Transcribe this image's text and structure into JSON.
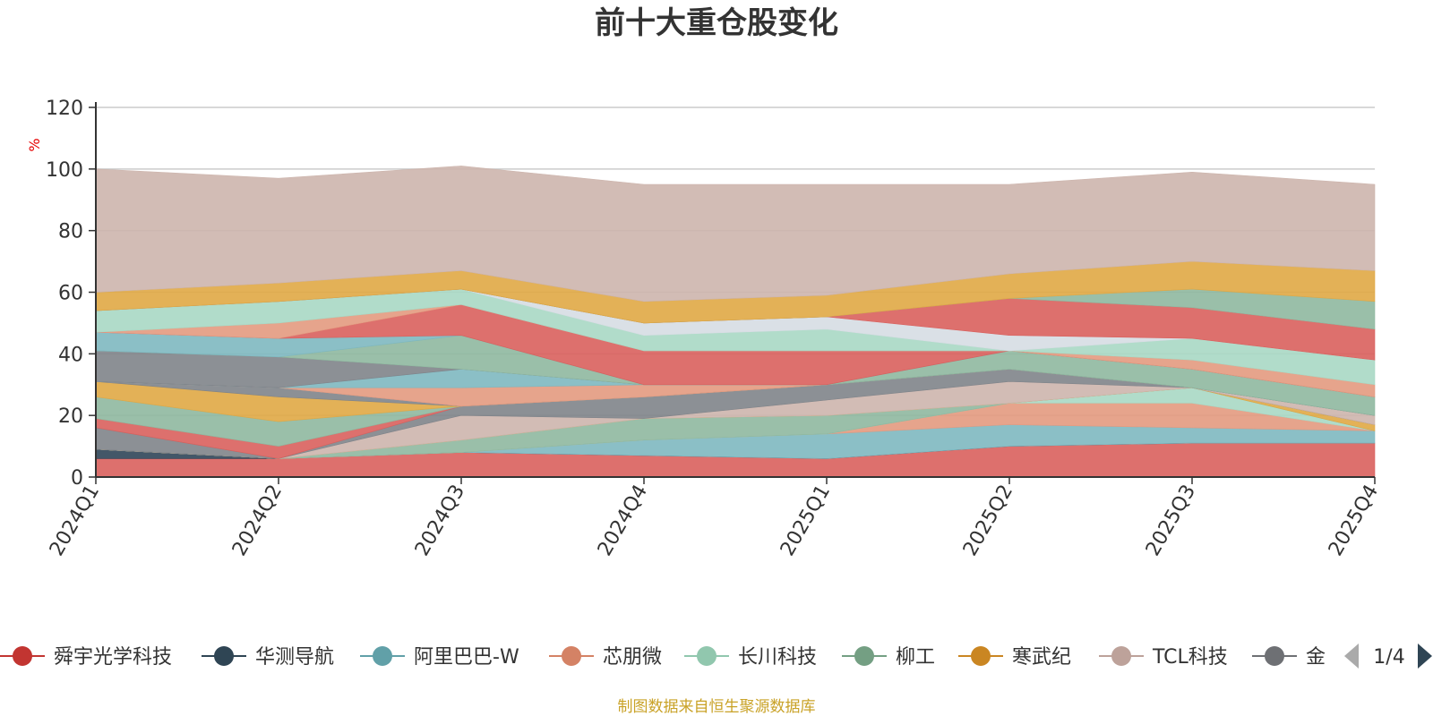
{
  "chart_data": {
    "type": "area",
    "stacked": true,
    "title": "前十大重仓股变化",
    "ylabel": "%",
    "ylim": [
      0,
      120
    ],
    "yticks": [
      0,
      20,
      40,
      60,
      80,
      100,
      120
    ],
    "grid": true,
    "categories": [
      "2024Q1",
      "2024Q2",
      "2024Q3",
      "2024Q4",
      "2025Q1",
      "2025Q2",
      "2025Q3",
      "2025Q4"
    ],
    "series": [
      {
        "name": "舜宇光学科技",
        "color": "#d9605d",
        "values": [
          6,
          6,
          8,
          7,
          6,
          10,
          11,
          11
        ]
      },
      {
        "name": "华测导航",
        "color": "#2f4558",
        "values": [
          3,
          0,
          0,
          0,
          0,
          0,
          0,
          0
        ]
      },
      {
        "name": "阿里巴巴-W",
        "color": "#7eb8c0",
        "values": [
          0,
          0,
          0,
          5,
          8,
          7,
          5,
          4
        ]
      },
      {
        "name": "芯朋微",
        "color": "#e39a80",
        "values": [
          0,
          0,
          0,
          0,
          0,
          7,
          8,
          0
        ]
      },
      {
        "name": "长川科技",
        "color": "#a8d8c4",
        "values": [
          0,
          0,
          0,
          0,
          0,
          0,
          5,
          0
        ]
      },
      {
        "name": "柳工",
        "color": "#8fb8a0",
        "values": [
          0,
          0,
          4,
          7,
          6,
          0,
          0,
          0
        ]
      },
      {
        "name": "寒武纪",
        "color": "#e0a845",
        "values": [
          0,
          0,
          0,
          0,
          0,
          0,
          0,
          2
        ]
      },
      {
        "name": "TCL科技",
        "color": "#cdb5ad",
        "values": [
          0,
          0,
          8,
          0,
          5,
          7,
          0,
          0
        ]
      },
      {
        "name": "金",
        "color": "#7f848a",
        "values": [
          7,
          0,
          3,
          7,
          5,
          4,
          0,
          0
        ]
      },
      {
        "name": "",
        "color": "#d9605d",
        "values": [
          3,
          4,
          0,
          0,
          0,
          0,
          0,
          0
        ]
      },
      {
        "name": "",
        "color": "#8fb8a0",
        "values": [
          7,
          8,
          0,
          0,
          0,
          0,
          0,
          0
        ]
      },
      {
        "name": "",
        "color": "#e0a845",
        "values": [
          5,
          8,
          0,
          0,
          0,
          0,
          0,
          0
        ]
      },
      {
        "name": "",
        "color": "#7f848a",
        "values": [
          0,
          3,
          0,
          0,
          0,
          0,
          0,
          0
        ]
      },
      {
        "name": "",
        "color": "#cdb5ad",
        "values": [
          0,
          0,
          0,
          0,
          0,
          0,
          0,
          3
        ]
      },
      {
        "name": "",
        "color": "#e39a80",
        "values": [
          0,
          0,
          6,
          4,
          0,
          0,
          0,
          0
        ]
      },
      {
        "name": "",
        "color": "#7eb8c0",
        "values": [
          0,
          0,
          6,
          0,
          0,
          0,
          0,
          0
        ]
      },
      {
        "name": "",
        "color": "#7f848a",
        "values": [
          10,
          10,
          0,
          0,
          0,
          0,
          0,
          0
        ]
      },
      {
        "name": "",
        "color": "#8fb8a0",
        "values": [
          0,
          0,
          11,
          0,
          0,
          6,
          6,
          6
        ]
      },
      {
        "name": "",
        "color": "#7eb8c0",
        "values": [
          6,
          6,
          0,
          0,
          0,
          0,
          0,
          0
        ]
      },
      {
        "name": "",
        "color": "#d9605d",
        "values": [
          0,
          0,
          10,
          11,
          11,
          0,
          0,
          0
        ]
      },
      {
        "name": "",
        "color": "#e39a80",
        "values": [
          0,
          5,
          0,
          0,
          0,
          0,
          3,
          4
        ]
      },
      {
        "name": "",
        "color": "#a8d8c4",
        "values": [
          7,
          7,
          5,
          5,
          7,
          0,
          7,
          8
        ]
      },
      {
        "name": "",
        "color": "#d6dde3",
        "values": [
          0,
          0,
          0,
          4,
          4,
          5,
          0,
          0
        ]
      },
      {
        "name": "",
        "color": "#d9605d",
        "values": [
          0,
          0,
          0,
          0,
          0,
          12,
          10,
          10
        ]
      },
      {
        "name": "",
        "color": "#8fb8a0",
        "values": [
          0,
          0,
          0,
          0,
          0,
          0,
          6,
          9
        ]
      },
      {
        "name": "",
        "color": "#e0a845",
        "values": [
          6,
          6,
          6,
          7,
          7,
          8,
          9,
          10
        ]
      },
      {
        "name": "",
        "color": "#cdb5ad",
        "values": [
          40,
          34,
          34,
          38,
          36,
          29,
          29,
          28
        ]
      }
    ],
    "legend": {
      "position": "bottom",
      "items": [
        {
          "name": "舜宇光学科技",
          "color": "#c23531"
        },
        {
          "name": "华测导航",
          "color": "#2f4554"
        },
        {
          "name": "阿里巴巴-W",
          "color": "#61a0a8"
        },
        {
          "name": "芯朋微",
          "color": "#d48265"
        },
        {
          "name": "长川科技",
          "color": "#91c7ae"
        },
        {
          "name": "柳工",
          "color": "#749f83"
        },
        {
          "name": "寒武纪",
          "color": "#ca8622"
        },
        {
          "name": "TCL科技",
          "color": "#bda29a"
        },
        {
          "name": "金",
          "color": "#6e7074"
        }
      ],
      "page": "1/4",
      "prev_icon": "triangle-left-icon",
      "next_icon": "triangle-right-icon"
    },
    "source": "制图数据来自恒生聚源数据库"
  }
}
